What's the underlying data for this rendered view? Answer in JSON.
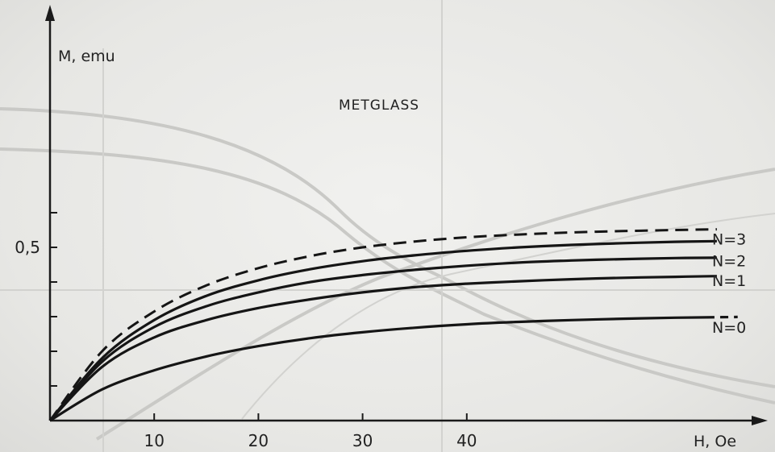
{
  "chart_data": {
    "type": "line",
    "title": "METGLASS",
    "xlabel": "H, Oe",
    "ylabel": "M, emu",
    "xlim": [
      0,
      68
    ],
    "ylim": [
      0,
      1.15
    ],
    "x_ticks": [
      10,
      20,
      30,
      40
    ],
    "x_tick_labels": [
      "10",
      "20",
      "30",
      "40"
    ],
    "y_ticks": [
      0.1,
      0.2,
      0.3,
      0.4,
      0.5,
      0.6
    ],
    "y_tick_labels": [
      "0,5"
    ],
    "y_labeled_tick": 0.5,
    "grid": false,
    "series": [
      {
        "name": "N=0",
        "style": "solid",
        "x": [
          0,
          5,
          10,
          15,
          20,
          25,
          30,
          35,
          40,
          45,
          50,
          55,
          60,
          63
        ],
        "values": [
          0,
          0.09,
          0.145,
          0.185,
          0.215,
          0.238,
          0.255,
          0.268,
          0.278,
          0.285,
          0.29,
          0.294,
          0.297,
          0.298
        ],
        "dashed_tail": {
          "x": [
            63,
            66
          ],
          "values": [
            0.298,
            0.299
          ]
        }
      },
      {
        "name": "N=1",
        "style": "solid",
        "x": [
          0,
          5,
          10,
          15,
          20,
          25,
          30,
          35,
          40,
          45,
          50,
          55,
          60,
          64
        ],
        "values": [
          0,
          0.155,
          0.24,
          0.29,
          0.325,
          0.35,
          0.37,
          0.385,
          0.395,
          0.402,
          0.408,
          0.412,
          0.415,
          0.417
        ]
      },
      {
        "name": "N=2",
        "style": "solid",
        "x": [
          0,
          5,
          10,
          15,
          20,
          25,
          30,
          35,
          40,
          45,
          50,
          55,
          60,
          64
        ],
        "values": [
          0,
          0.17,
          0.27,
          0.33,
          0.37,
          0.4,
          0.42,
          0.435,
          0.447,
          0.456,
          0.462,
          0.466,
          0.469,
          0.47
        ]
      },
      {
        "name": "N=3",
        "style": "solid",
        "x": [
          0,
          5,
          10,
          15,
          20,
          25,
          30,
          35,
          40,
          45,
          50,
          55,
          60,
          64
        ],
        "values": [
          0,
          0.18,
          0.29,
          0.36,
          0.405,
          0.437,
          0.46,
          0.477,
          0.49,
          0.5,
          0.507,
          0.512,
          0.516,
          0.518
        ]
      },
      {
        "name": "",
        "style": "dashed",
        "x": [
          0,
          5,
          10,
          15,
          20,
          25,
          30,
          35,
          40,
          45,
          50,
          55,
          60,
          64
        ],
        "values": [
          0,
          0.2,
          0.315,
          0.39,
          0.44,
          0.475,
          0.5,
          0.517,
          0.529,
          0.537,
          0.543,
          0.547,
          0.55,
          0.552
        ]
      }
    ]
  }
}
